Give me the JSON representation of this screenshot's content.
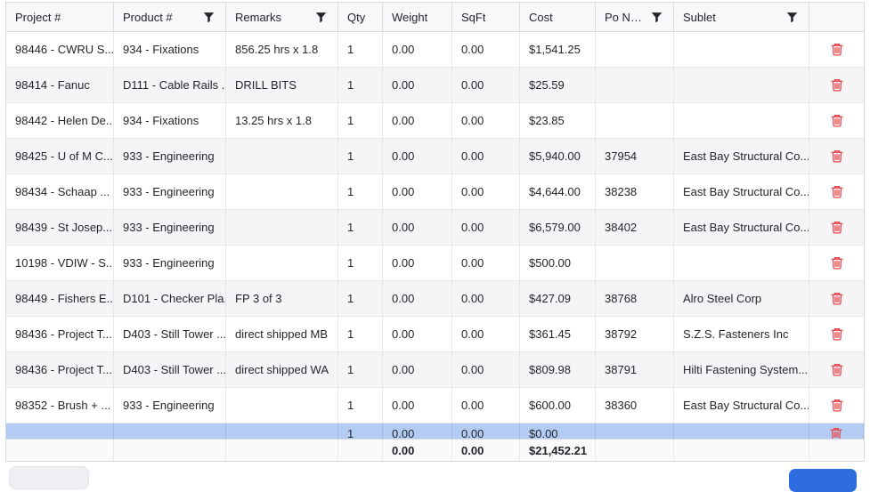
{
  "table": {
    "columns": [
      {
        "id": "project",
        "label": "Project #",
        "filter": false
      },
      {
        "id": "product",
        "label": "Product #",
        "filter": true
      },
      {
        "id": "remarks",
        "label": "Remarks",
        "filter": true
      },
      {
        "id": "qty",
        "label": "Qty",
        "filter": false
      },
      {
        "id": "weight",
        "label": "Weight",
        "filter": false
      },
      {
        "id": "sqft",
        "label": "SqFt",
        "filter": false
      },
      {
        "id": "cost",
        "label": "Cost",
        "filter": false
      },
      {
        "id": "po",
        "label": "Po Nu...",
        "filter": true
      },
      {
        "id": "sublet",
        "label": "Sublet",
        "filter": true
      },
      {
        "id": "actions",
        "label": "",
        "filter": false
      }
    ],
    "rows": [
      {
        "project": "98446 - CWRU S...",
        "product": "934 - Fixations",
        "remarks": "856.25 hrs x 1.8",
        "qty": "1",
        "weight": "0.00",
        "sqft": "0.00",
        "cost": "$1,541.25",
        "po": "",
        "sublet": ""
      },
      {
        "project": "98414 - Fanuc",
        "product": "D111 - Cable Rails ...",
        "remarks": "DRILL BITS",
        "qty": "1",
        "weight": "0.00",
        "sqft": "0.00",
        "cost": "$25.59",
        "po": "",
        "sublet": ""
      },
      {
        "project": "98442 - Helen De...",
        "product": "934 - Fixations",
        "remarks": "13.25 hrs x 1.8",
        "qty": "1",
        "weight": "0.00",
        "sqft": "0.00",
        "cost": "$23.85",
        "po": "",
        "sublet": ""
      },
      {
        "project": "98425 - U of M C...",
        "product": "933 - Engineering",
        "remarks": "",
        "qty": "1",
        "weight": "0.00",
        "sqft": "0.00",
        "cost": "$5,940.00",
        "po": "37954",
        "sublet": "East Bay Structural Co..."
      },
      {
        "project": "98434 - Schaap ...",
        "product": "933 - Engineering",
        "remarks": "",
        "qty": "1",
        "weight": "0.00",
        "sqft": "0.00",
        "cost": "$4,644.00",
        "po": "38238",
        "sublet": "East Bay Structural Co..."
      },
      {
        "project": "98439 - St Josep...",
        "product": "933 - Engineering",
        "remarks": "",
        "qty": "1",
        "weight": "0.00",
        "sqft": "0.00",
        "cost": "$6,579.00",
        "po": "38402",
        "sublet": "East Bay Structural Co..."
      },
      {
        "project": "10198 - VDIW - S...",
        "product": "933 - Engineering",
        "remarks": "",
        "qty": "1",
        "weight": "0.00",
        "sqft": "0.00",
        "cost": "$500.00",
        "po": "",
        "sublet": ""
      },
      {
        "project": "98449 - Fishers E...",
        "product": "D101 - Checker Pla...",
        "remarks": "FP 3 of 3",
        "qty": "1",
        "weight": "0.00",
        "sqft": "0.00",
        "cost": "$427.09",
        "po": "38768",
        "sublet": "Alro Steel Corp"
      },
      {
        "project": "98436 - Project T...",
        "product": "D403 - Still Tower ...",
        "remarks": "direct shipped MB",
        "qty": "1",
        "weight": "0.00",
        "sqft": "0.00",
        "cost": "$361.45",
        "po": "38792",
        "sublet": "S.Z.S. Fasteners Inc"
      },
      {
        "project": "98436 - Project T...",
        "product": "D403 - Still Tower ...",
        "remarks": "direct shipped WA",
        "qty": "1",
        "weight": "0.00",
        "sqft": "0.00",
        "cost": "$809.98",
        "po": "38791",
        "sublet": "Hilti Fastening System..."
      },
      {
        "project": "98352 - Brush + ...",
        "product": "933 - Engineering",
        "remarks": "",
        "qty": "1",
        "weight": "0.00",
        "sqft": "0.00",
        "cost": "$600.00",
        "po": "38360",
        "sublet": "East Bay Structural Co..."
      }
    ],
    "selected_row": {
      "project": "",
      "product": "",
      "remarks": "",
      "qty": "1",
      "weight": "0.00",
      "sqft": "0.00",
      "cost": "$0.00",
      "po": "",
      "sublet": ""
    },
    "footer": {
      "weight": "0.00",
      "sqft": "0.00",
      "cost": "$21,452.21"
    }
  },
  "icons": {
    "filter": "funnel-filter-icon",
    "delete": "trash-icon"
  },
  "colors": {
    "selected_row_bg": "#b4ccf4",
    "stripe_bg": "#f5f5f7",
    "header_bg": "#f8f8fa",
    "delete_icon": "#e5484d",
    "primary_button": "#2e6ce0",
    "secondary_button": "#efeff3"
  }
}
